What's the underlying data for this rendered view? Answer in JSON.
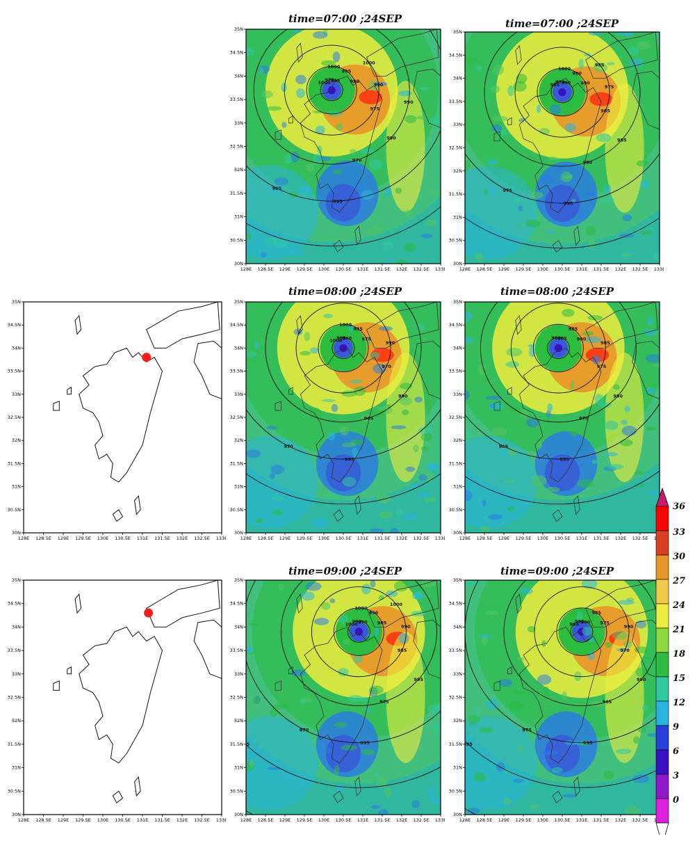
{
  "rows": [
    {
      "title_left": "time=07:00 ;24SEP",
      "title_right": "time=07:00 ;24SEP",
      "has_track_map": false,
      "left_labels": [
        "985",
        "980",
        "975",
        "970",
        "965",
        "970",
        "980",
        "975",
        "985",
        "990",
        "990",
        "995",
        "995",
        "995",
        "1000",
        "1000",
        "1000",
        "990"
      ],
      "right_labels": [
        "990",
        "990",
        "985",
        "980",
        "975",
        "970",
        "965",
        "970",
        "980",
        "975",
        "985",
        "990",
        "990",
        "995",
        "995",
        "1000",
        "995"
      ]
    },
    {
      "title_left": "time=08:00 ;24SEP",
      "title_right": "time=08:00 ;24SEP",
      "has_track_map": true,
      "left_labels": [
        "980",
        "975",
        "970",
        "965",
        "970",
        "975",
        "980",
        "985",
        "985",
        "990",
        "990",
        "995",
        "995",
        "1000",
        "1000",
        "1000"
      ],
      "right_labels": [
        "985",
        "980",
        "975",
        "970",
        "965",
        "970",
        "975",
        "980",
        "985",
        "985",
        "990",
        "995",
        "995",
        "1000"
      ]
    },
    {
      "title_left": "time=09:00 ;24SEP",
      "title_right": "time=09:00 ;24SEP",
      "has_track_map": true,
      "left_labels": [
        "970",
        "985",
        "985",
        "975",
        "970",
        "980",
        "985",
        "990",
        "990",
        "990",
        "995",
        "995",
        "995",
        "1000",
        "1000",
        "1000",
        "1000"
      ],
      "right_labels": [
        "980",
        "975",
        "970",
        "965",
        "975",
        "980",
        "985",
        "985",
        "985",
        "990",
        "990",
        "995",
        "995",
        "1000",
        "995"
      ]
    }
  ],
  "map_axes": {
    "x_ticks": [
      "128E",
      "128.5E",
      "129E",
      "129.5E",
      "130E",
      "130.5E",
      "131E",
      "131.5E",
      "132E",
      "132.5E",
      "133E"
    ],
    "y_ticks": [
      "35N",
      "34.5N",
      "34N",
      "33.5N",
      "33N",
      "32.5N",
      "32N",
      "31.5N",
      "31N",
      "30.5N",
      "30N"
    ],
    "lon_range": [
      128,
      133
    ],
    "lat_range": [
      30,
      35
    ]
  },
  "typhoon_positions": [
    {
      "lon": 131.1,
      "lat": 33.8
    },
    {
      "lon": 131.15,
      "lat": 34.3
    }
  ],
  "colorbar": {
    "levels": [
      "36",
      "33",
      "30",
      "27",
      "24",
      "21",
      "18",
      "15",
      "12",
      "9",
      "6",
      "3",
      "0"
    ],
    "colors": [
      "#ff0000",
      "#d94020",
      "#e8952a",
      "#f2c848",
      "#eded40",
      "#90d840",
      "#2cbc40",
      "#30c8a0",
      "#28b4e0",
      "#2840d8",
      "#3a10c0",
      "#9018c8",
      "#e020e0"
    ],
    "top_triangle_color": "#c81a6a",
    "bottom_triangle_color": "#ffffff"
  },
  "colors": {
    "field_base": "#2fb7a0",
    "weak_wind": "#3a58d8",
    "strong_wind": "#e8952a",
    "contour": "#111111",
    "storm_dot": "#ff1a1a"
  }
}
